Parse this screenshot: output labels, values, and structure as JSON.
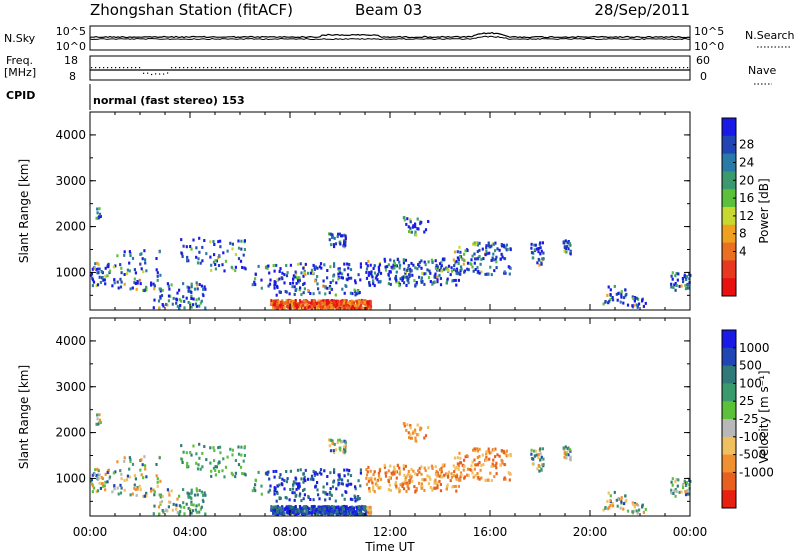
{
  "header": {
    "title": "Zhongshan Station (fitACF)",
    "beam": "Beam 03",
    "date": "28/Sep/2011"
  },
  "strip_nsky": {
    "left_label": "N.Sky",
    "left_ticks": [
      "10^5",
      "10^0"
    ],
    "right_ticks": [
      "10^5",
      "10^0"
    ],
    "right_label": "N.Search"
  },
  "strip_freq": {
    "left_label": "Freq.",
    "left_unit": "[MHz]",
    "left_ticks": [
      "18",
      "8"
    ],
    "right_ticks": [
      "60",
      "0"
    ],
    "right_label": "Nave"
  },
  "strip_cpid": {
    "left_label": "CPID",
    "text": "normal (fast stereo) 153"
  },
  "chart_data": [
    {
      "type": "heatmap",
      "panel": "power",
      "ylabel": "Slant Range [km]",
      "yticks": [
        "1000",
        "2000",
        "3000",
        "4000"
      ],
      "colorbar_label": "Power [dB]",
      "colorbar_ticks": [
        "28",
        "24",
        "20",
        "16",
        "12",
        "8",
        "4"
      ],
      "colors": [
        "#1a1ae6",
        "#1f46b4",
        "#2a7aa8",
        "#3a9a6e",
        "#5cc03a",
        "#c8d830",
        "#f0a020",
        "#e87020",
        "#e83820",
        "#e81010"
      ]
    },
    {
      "type": "heatmap",
      "panel": "velocity",
      "ylabel": "Slant Range [km]",
      "yticks": [
        "1000",
        "2000",
        "3000",
        "4000"
      ],
      "colorbar_label": "Velocity [m s⁻¹]",
      "colorbar_ticks": [
        "1000",
        "500",
        "100",
        "25",
        "-25",
        "-100",
        "-500",
        "-1000"
      ],
      "colors": [
        "#1a1ae6",
        "#1f46b4",
        "#2f7a78",
        "#3a9a6e",
        "#5cc03a",
        "#b8b8b8",
        "#f0c060",
        "#f09030",
        "#e86020",
        "#e82010"
      ]
    }
  ],
  "xaxis": {
    "ticks": [
      "00:00",
      "04:00",
      "08:00",
      "12:00",
      "16:00",
      "20:00",
      "00:00"
    ],
    "label": "Time UT"
  }
}
